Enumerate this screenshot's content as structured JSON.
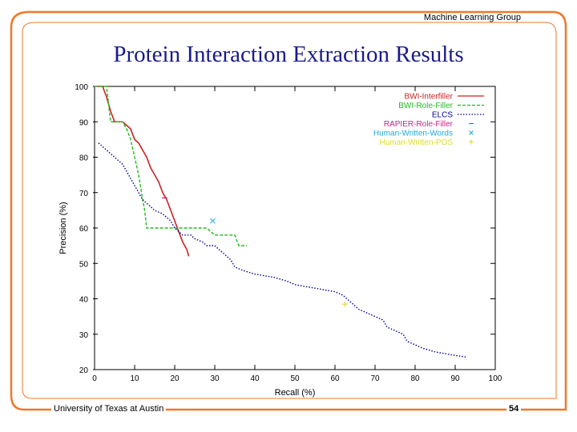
{
  "slide": {
    "header": "Machine Learning Group",
    "title": "Protein Interaction Extraction Results",
    "footer_left": "University of Texas at Austin",
    "page_number": "54",
    "accent_color": "#f07828"
  },
  "chart_data": {
    "type": "line",
    "xlabel": "Recall (%)",
    "ylabel": "Precision (%)",
    "xlim": [
      0,
      100
    ],
    "ylim": [
      20,
      100
    ],
    "xticks": [
      0,
      10,
      20,
      30,
      40,
      50,
      60,
      70,
      80,
      90,
      100
    ],
    "yticks": [
      20,
      30,
      40,
      50,
      60,
      70,
      80,
      90,
      100
    ],
    "grid": false,
    "legend_position": "top-right",
    "series": [
      {
        "name": "BWI-Interfiller",
        "color": "#cc2222",
        "style": "solid",
        "x": [
          0.5,
          2,
          3,
          4,
          5,
          7,
          9,
          10,
          11,
          12,
          13,
          14,
          15,
          16,
          17,
          18,
          19,
          20,
          21,
          22,
          23,
          23.5
        ],
        "y": [
          100,
          100,
          97,
          93,
          90,
          90,
          88,
          85,
          84,
          82,
          80,
          77,
          75,
          73,
          70,
          68,
          65,
          62,
          59,
          56,
          54,
          52
        ]
      },
      {
        "name": "BWI-Role-Filler",
        "color": "#22bb22",
        "style": "dashed",
        "x": [
          0,
          3,
          4,
          7,
          8,
          9,
          10,
          11,
          12,
          12.5,
          13,
          20,
          28,
          29,
          30,
          35,
          36,
          38
        ],
        "y": [
          100,
          100,
          90,
          90,
          88,
          85,
          80,
          75,
          68,
          65,
          60,
          60,
          60,
          59,
          58,
          58,
          55,
          55
        ]
      },
      {
        "name": "ELCS",
        "color": "#000099",
        "style": "dotted",
        "x": [
          1,
          3,
          5,
          7,
          8,
          9,
          10,
          11,
          12,
          13,
          14,
          15,
          17,
          19,
          20,
          21,
          22,
          24,
          25,
          27,
          28,
          30,
          32,
          34,
          35,
          37,
          40,
          45,
          48,
          50,
          55,
          60,
          62,
          64,
          66,
          68,
          70,
          72,
          73,
          75,
          77,
          78,
          80,
          82,
          85,
          90,
          93
        ],
        "y": [
          84,
          82,
          80,
          78,
          76,
          74,
          72,
          70,
          68,
          67,
          66,
          65,
          64,
          62,
          60,
          59,
          58,
          58,
          57,
          56,
          55,
          55,
          53,
          51,
          49,
          48,
          47,
          46,
          45,
          44,
          43,
          42,
          41,
          39,
          37,
          36,
          35,
          34,
          32,
          31,
          30,
          28,
          27,
          26,
          25,
          24,
          23.5
        ]
      },
      {
        "name": "RAPIER-Role-Filler",
        "color": "#cc2288",
        "style": "point",
        "x": [
          17.5
        ],
        "y": [
          68.5
        ]
      },
      {
        "name": "Human-Written-Words",
        "color": "#22aadd",
        "style": "point",
        "x": [
          29.5
        ],
        "y": [
          62
        ]
      },
      {
        "name": "Human-Written-POS",
        "color": "#dddd22",
        "style": "point",
        "x": [
          62.5
        ],
        "y": [
          38.5
        ]
      }
    ]
  }
}
